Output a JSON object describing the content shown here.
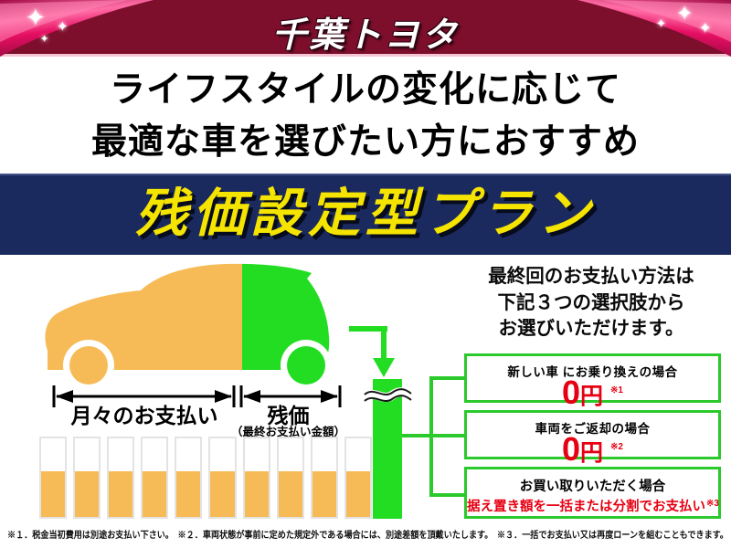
{
  "header": {
    "logo": "千葉トヨタ",
    "bg_color": "#7d0e2c",
    "ribbon_color": "#e50e62"
  },
  "headline": {
    "line1": "ライフスタイルの変化に応じて",
    "line2": "最適な車を選びたい方におすすめ"
  },
  "banner": {
    "title": "残価設定型プラン",
    "bg_color": "#1b2a5e",
    "text_color": "#f5e400"
  },
  "diagram": {
    "monthly_label": "月々のお支払い",
    "residual_label": "残価",
    "residual_sublabel": "（最終お支払い金額）",
    "monthly_color": "#f6bb56",
    "residual_color": "#22dd22",
    "bars_count": 10,
    "bar_fill_percent": 58
  },
  "options": {
    "intro_line1": "最終回のお支払い方法は",
    "intro_line2": "下記３つの選択肢から",
    "intro_line3": "お選びいただけます。",
    "accent_color": "#e60012",
    "border_color": "#2bc92b",
    "items": [
      {
        "title": "新しい車 にお乗り換えの場合",
        "amount_num": "0",
        "amount_unit": "円",
        "note": "※1"
      },
      {
        "title": "車両をご返却の場合",
        "amount_num": "0",
        "amount_unit": "円",
        "note": "※2"
      },
      {
        "title": "お買い取りいただく場合",
        "detail": "据え置き額を一括または分割でお支払い",
        "note": "※3"
      }
    ]
  },
  "footnotes": {
    "text": "※１．税金当初費用は別途お支払い下さい。　※２．車両状態が事前に定めた規定外である場合には、別途差額を頂戴いたします。　※３．一括でお支払い又は再度ローンを組むこともできます。"
  }
}
